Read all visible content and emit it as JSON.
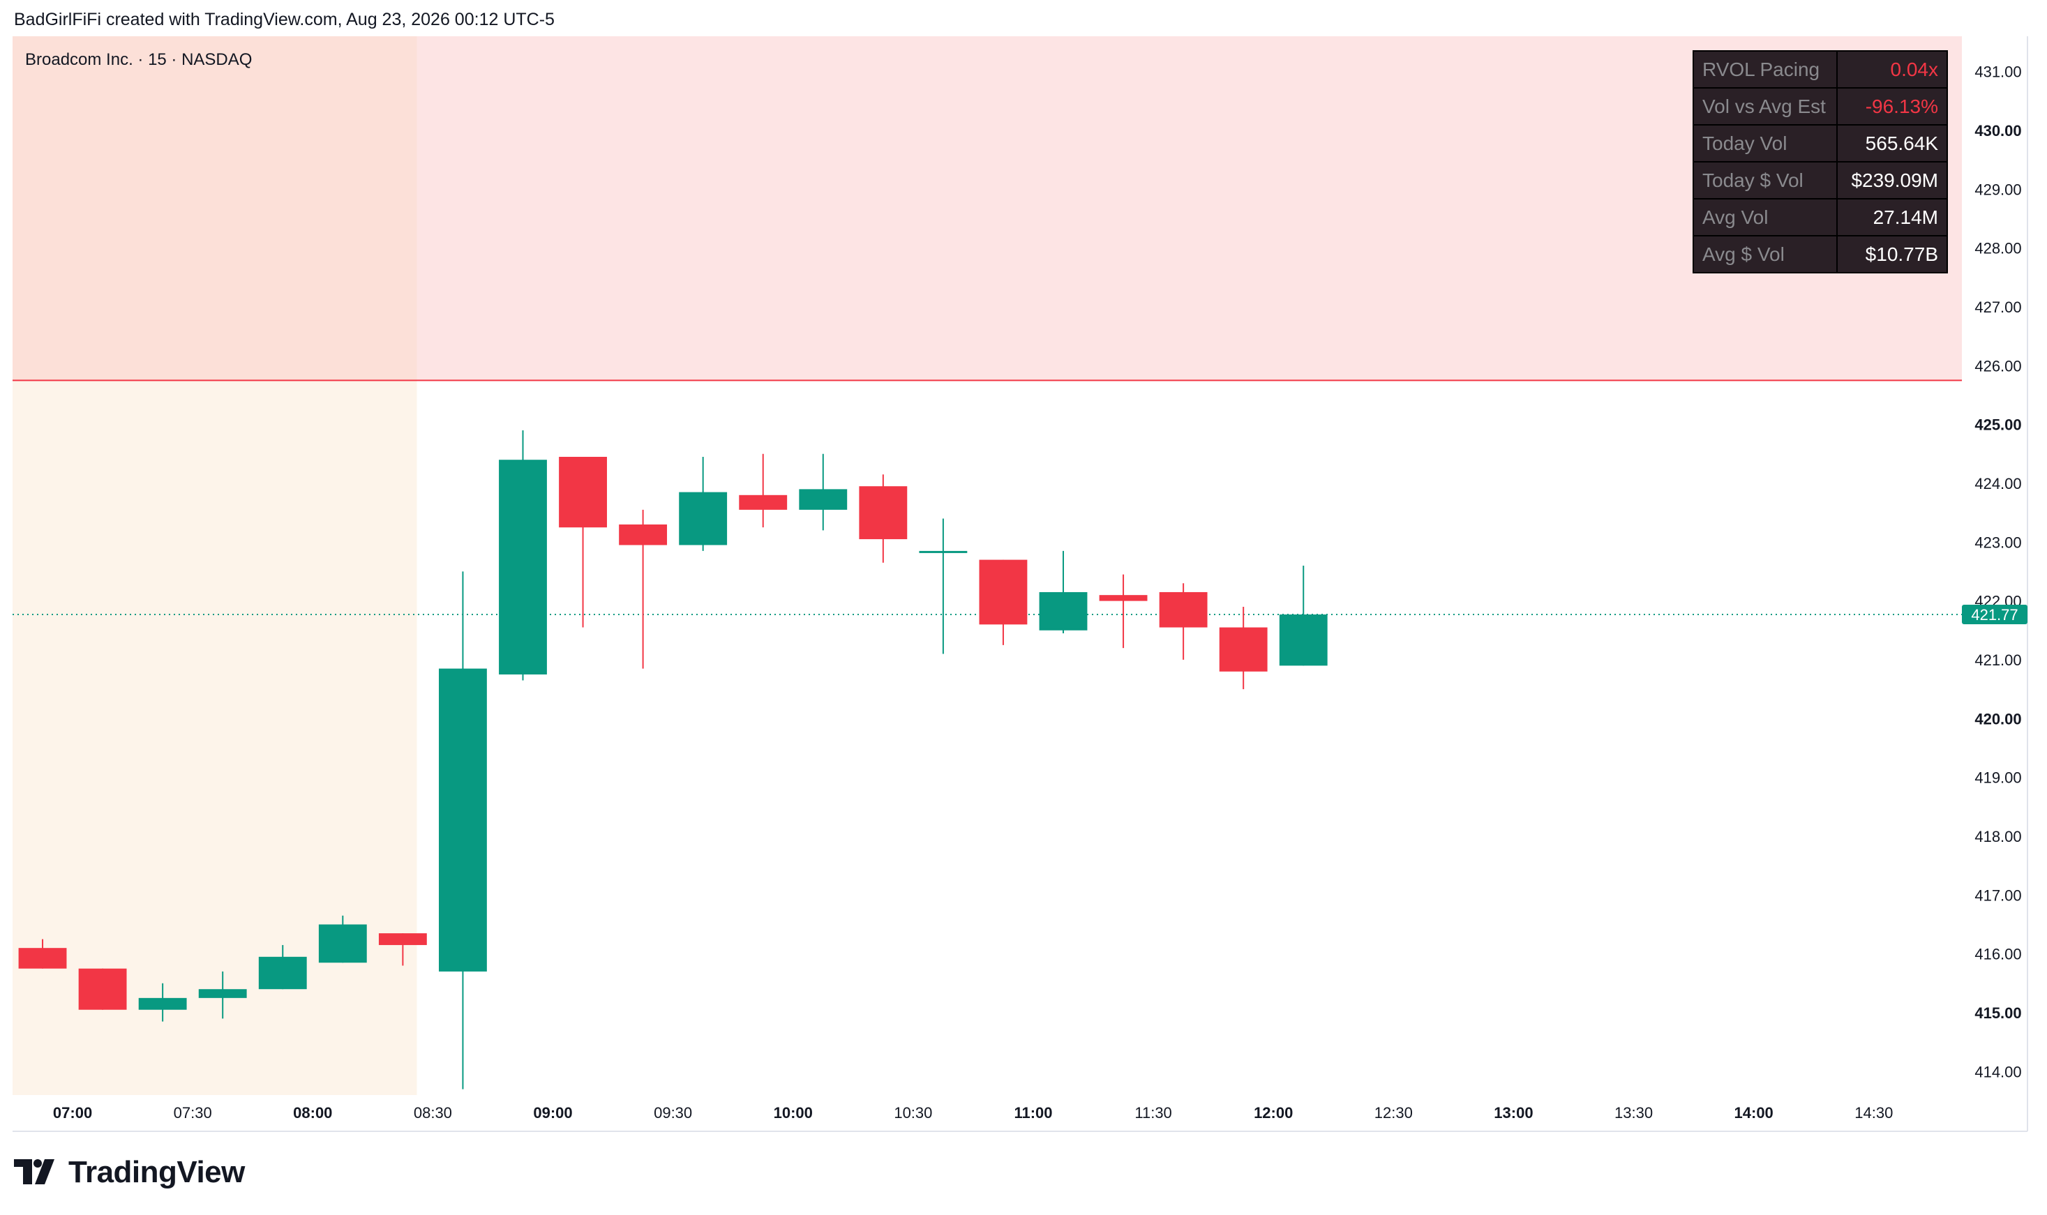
{
  "header": {
    "credit": "BadGirlFiFi created with TradingView.com, Aug 23, 2026 00:12 UTC-5"
  },
  "symbol": {
    "label": "Broadcom Inc. · 15 · NASDAQ"
  },
  "rvol_table": [
    {
      "key": "RVOL Pacing",
      "value": "0.04x",
      "negative": true
    },
    {
      "key": "Vol vs Avg Est",
      "value": "-96.13%",
      "negative": true
    },
    {
      "key": "Today Vol",
      "value": "565.64K",
      "negative": false
    },
    {
      "key": "Today $ Vol",
      "value": "$239.09M",
      "negative": false
    },
    {
      "key": "Avg Vol",
      "value": "27.14M",
      "negative": false
    },
    {
      "key": "Avg $ Vol",
      "value": "$10.77B",
      "negative": false
    }
  ],
  "footer": {
    "brand": "TradingView",
    "logo_icon": "tradingview-logo-icon"
  },
  "colors": {
    "up": "#089981",
    "down": "#f23645",
    "resistance_zone": "#fde4e4",
    "premarket": "#fdf4ea",
    "premarket_resistance": "#fce0d8",
    "resistance_line": "#f23645",
    "last_price": "#089981"
  },
  "chart_data": {
    "type": "candlestick",
    "interval_minutes": 15,
    "ylim": [
      413.6,
      431.6
    ],
    "y_ticks": [
      {
        "value": 414,
        "label": "414.00",
        "major": false
      },
      {
        "value": 415,
        "label": "415.00",
        "major": true
      },
      {
        "value": 416,
        "label": "416.00",
        "major": false
      },
      {
        "value": 417,
        "label": "417.00",
        "major": false
      },
      {
        "value": 418,
        "label": "418.00",
        "major": false
      },
      {
        "value": 419,
        "label": "419.00",
        "major": false
      },
      {
        "value": 420,
        "label": "420.00",
        "major": true
      },
      {
        "value": 421,
        "label": "421.00",
        "major": false
      },
      {
        "value": 422,
        "label": "422.00",
        "major": false
      },
      {
        "value": 423,
        "label": "423.00",
        "major": false
      },
      {
        "value": 424,
        "label": "424.00",
        "major": false
      },
      {
        "value": 425,
        "label": "425.00",
        "major": true
      },
      {
        "value": 426,
        "label": "426.00",
        "major": false
      },
      {
        "value": 427,
        "label": "427.00",
        "major": false
      },
      {
        "value": 428,
        "label": "428.00",
        "major": false
      },
      {
        "value": 429,
        "label": "429.00",
        "major": false
      },
      {
        "value": 430,
        "label": "430.00",
        "major": true
      },
      {
        "value": 431,
        "label": "431.00",
        "major": false
      }
    ],
    "x_ticks": [
      {
        "time": "07:00",
        "major": true
      },
      {
        "time": "07:30",
        "major": false
      },
      {
        "time": "08:00",
        "major": true
      },
      {
        "time": "08:30",
        "major": false
      },
      {
        "time": "09:00",
        "major": true
      },
      {
        "time": "09:30",
        "major": false
      },
      {
        "time": "10:00",
        "major": true
      },
      {
        "time": "10:30",
        "major": false
      },
      {
        "time": "11:00",
        "major": true
      },
      {
        "time": "11:30",
        "major": false
      },
      {
        "time": "12:00",
        "major": true
      },
      {
        "time": "12:30",
        "major": false
      },
      {
        "time": "13:00",
        "major": true
      },
      {
        "time": "13:30",
        "major": false
      },
      {
        "time": "14:00",
        "major": true
      },
      {
        "time": "14:30",
        "major": false
      }
    ],
    "x_range": [
      "06:45",
      "14:52"
    ],
    "premarket_end": "08:26",
    "resistance_level": 425.75,
    "last_price": {
      "value": 421.77,
      "label": "421.77"
    },
    "candles": [
      {
        "time": "06:45",
        "open": 416.1,
        "high": 416.25,
        "low": 415.75,
        "close": 415.75
      },
      {
        "time": "07:00",
        "open": 415.75,
        "high": 415.75,
        "low": 415.05,
        "close": 415.05
      },
      {
        "time": "07:15",
        "open": 415.05,
        "high": 415.5,
        "low": 414.85,
        "close": 415.25
      },
      {
        "time": "07:30",
        "open": 415.25,
        "high": 415.7,
        "low": 414.9,
        "close": 415.4
      },
      {
        "time": "07:45",
        "open": 415.4,
        "high": 416.15,
        "low": 415.4,
        "close": 415.95
      },
      {
        "time": "08:00",
        "open": 415.85,
        "high": 416.65,
        "low": 415.85,
        "close": 416.5
      },
      {
        "time": "08:15",
        "open": 416.35,
        "high": 416.35,
        "low": 415.8,
        "close": 416.15
      },
      {
        "time": "08:30",
        "open": 415.7,
        "high": 422.5,
        "low": 413.7,
        "close": 420.85
      },
      {
        "time": "08:45",
        "open": 420.75,
        "high": 424.9,
        "low": 420.65,
        "close": 424.4
      },
      {
        "time": "09:00",
        "open": 424.45,
        "high": 424.45,
        "low": 421.55,
        "close": 423.25
      },
      {
        "time": "09:15",
        "open": 423.3,
        "high": 423.55,
        "low": 420.85,
        "close": 422.95
      },
      {
        "time": "09:30",
        "open": 422.95,
        "high": 424.45,
        "low": 422.85,
        "close": 423.85
      },
      {
        "time": "09:45",
        "open": 423.8,
        "high": 424.5,
        "low": 423.25,
        "close": 423.55
      },
      {
        "time": "10:00",
        "open": 423.55,
        "high": 424.5,
        "low": 423.2,
        "close": 423.9
      },
      {
        "time": "10:15",
        "open": 423.95,
        "high": 424.15,
        "low": 422.65,
        "close": 423.05
      },
      {
        "time": "10:30",
        "open": 422.85,
        "high": 423.4,
        "low": 421.1,
        "close": 422.85
      },
      {
        "time": "10:45",
        "open": 422.7,
        "high": 422.7,
        "low": 421.25,
        "close": 421.6
      },
      {
        "time": "11:00",
        "open": 421.5,
        "high": 422.85,
        "low": 421.45,
        "close": 422.15
      },
      {
        "time": "11:15",
        "open": 422.1,
        "high": 422.45,
        "low": 421.2,
        "close": 422.0
      },
      {
        "time": "11:30",
        "open": 422.15,
        "high": 422.3,
        "low": 421.0,
        "close": 421.55
      },
      {
        "time": "11:45",
        "open": 421.55,
        "high": 421.9,
        "low": 420.5,
        "close": 420.8
      },
      {
        "time": "12:00",
        "open": 420.9,
        "high": 422.6,
        "low": 420.9,
        "close": 421.77
      }
    ]
  }
}
